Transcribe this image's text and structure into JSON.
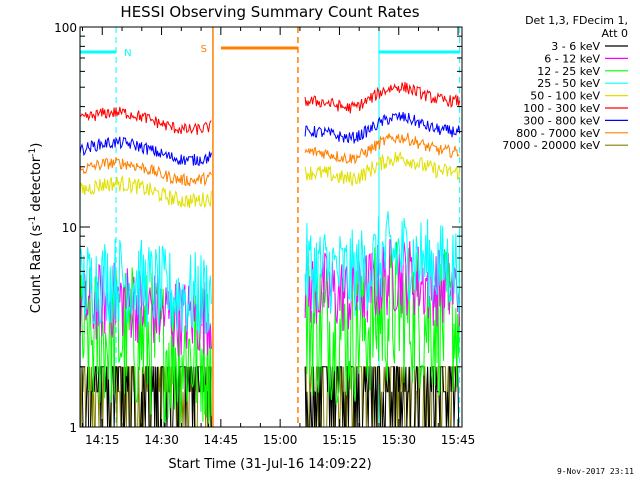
{
  "chart_data": {
    "type": "line",
    "title": "HESSI Observing Summary Count Rates",
    "xlabel": "Start Time (31-Jul-16 14:09:22)",
    "ylabel_main": "Count Rate (s",
    "ylabel_sup1": "-1",
    "ylabel_mid": " detector",
    "ylabel_sup2": "-1",
    "ylabel_end": ")",
    "yscale": "log",
    "ylim": [
      1,
      100
    ],
    "xlim_min": [
      849.37,
      946.0
    ],
    "y_tick_labels": [
      {
        "value": 1,
        "label": "1"
      },
      {
        "value": 10,
        "label": "10"
      },
      {
        "value": 100,
        "label": "100"
      }
    ],
    "x_tick_labels": [
      {
        "value": 855,
        "label": "14:15"
      },
      {
        "value": 870,
        "label": "14:30"
      },
      {
        "value": 885,
        "label": "14:45"
      },
      {
        "value": 900,
        "label": "15:00"
      },
      {
        "value": 915,
        "label": "15:15"
      },
      {
        "value": 930,
        "label": "15:30"
      },
      {
        "value": 945,
        "label": "15:45"
      }
    ],
    "legend": {
      "placement": "right",
      "header_line1": "Det 1,3, FDecim 1,",
      "header_line2": "Att 0"
    },
    "series": [
      {
        "name": "3 - 6 keV",
        "color": "#000000",
        "level": 1.5,
        "noise": 0.12
      },
      {
        "name": "6 - 12 keV",
        "color": "#ff00ff",
        "level": 3.9,
        "noise": 0.08
      },
      {
        "name": "12 - 25 keV",
        "color": "#00ff00",
        "level": 2.6,
        "noise": 0.15
      },
      {
        "name": "25 - 50 keV",
        "color": "#00ffff",
        "level": 5.0,
        "noise": 0.09
      },
      {
        "name": "50 - 100 keV",
        "color": "#e0e000",
        "level": 15.0,
        "noise": 0.04
      },
      {
        "name": "100 - 300 keV",
        "color": "#ff0000",
        "level": 34.0,
        "noise": 0.03
      },
      {
        "name": "300 - 800 keV",
        "color": "#0000ff",
        "level": 24.0,
        "noise": 0.03
      },
      {
        "name": "800 - 7000 keV",
        "color": "#ff8000",
        "level": 19.0,
        "noise": 0.03
      },
      {
        "name": "7000 - 20000 keV",
        "color": "#808000",
        "level": 1.35,
        "noise": 0.12
      }
    ],
    "segments": [
      {
        "start": 849.4,
        "end": 882.6,
        "scale": 1.0
      },
      {
        "start": 906.3,
        "end": 945.4,
        "scale": 1.25
      }
    ],
    "flags": {
      "night": {
        "label": "N",
        "color": "#00ffff",
        "periods": [
          [
            849.4,
            858.5
          ],
          [
            925.0,
            945.4
          ]
        ]
      },
      "saa": {
        "label": "S",
        "color": "#ff8000",
        "periods": [
          [
            883.0,
            904.5
          ]
        ]
      },
      "flag_level": 75
    },
    "footer_date": "9-Nov-2017 23:11"
  }
}
